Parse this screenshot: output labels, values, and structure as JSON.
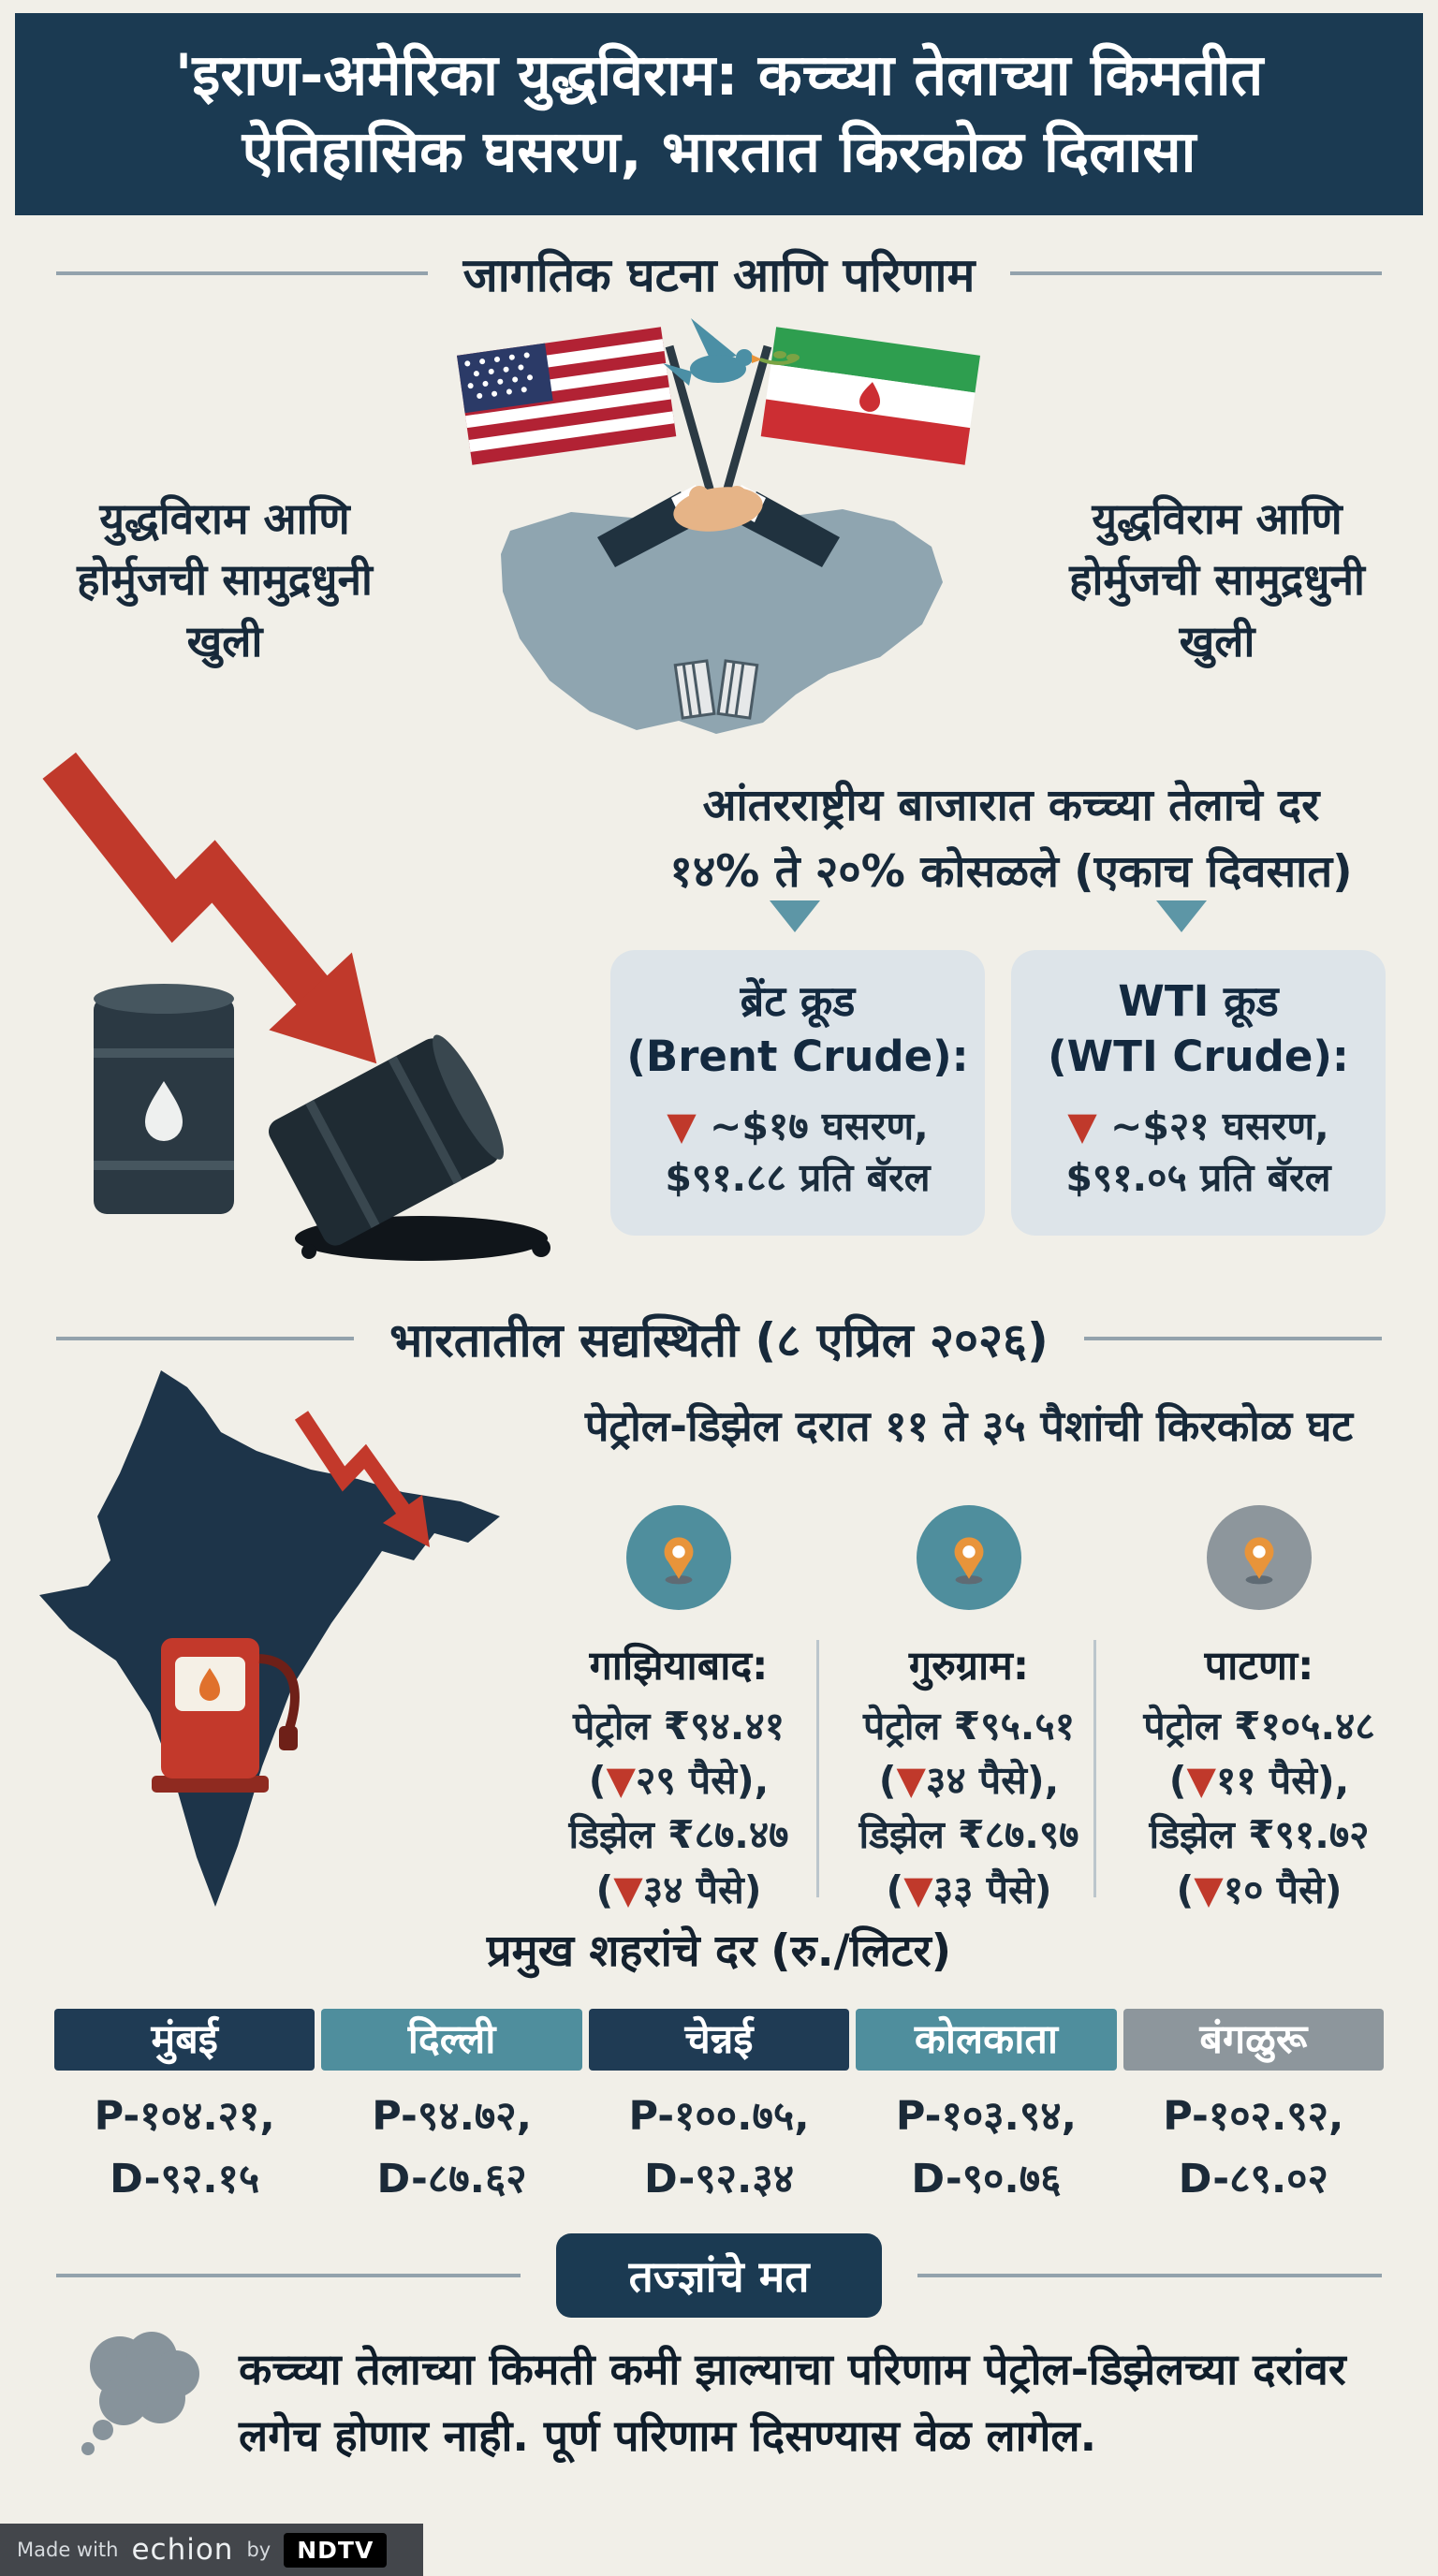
{
  "colors": {
    "navy": "#1b3a52",
    "teal": "#4f8e9d",
    "gray": "#8d969c",
    "red": "#c0392b",
    "cream": "#f1efe8",
    "card_bg": "#dde4e9",
    "pin_orange": "#e8943a"
  },
  "header": {
    "line1": "'इराण-अमेरिका युद्धविराम: कच्च्या तेलाच्या किमतीत",
    "line2": "ऐतिहासिक घसरण, भारतात किरकोळ दिलासा"
  },
  "global": {
    "title": "जागतिक घटना आणि परिणाम",
    "left_caption": "युद्धविराम आणि होर्मुजची सामुद्रधुनी खुली",
    "right_caption": "युद्धविराम आणि होर्मुजची सामुद्रधुनी खुली",
    "market_line1": "आंतरराष्ट्रीय बाजारात कच्च्या तेलाचे दर",
    "market_line2": "१४% ते २०% कोसळले (एकाच दिवसात)",
    "cards": [
      {
        "title": "ब्रेंट क्रूड",
        "subtitle": "(Brent Crude):",
        "change": "▼ ~$१७ घसरण,",
        "price": "$९१.८८ प्रति बॅरल"
      },
      {
        "title": "WTI क्रूड",
        "subtitle": "(WTI Crude):",
        "change": "▼ ~$२१ घसरण,",
        "price": "$९१.०५ प्रति बॅरल"
      }
    ]
  },
  "india": {
    "title": "भारतातील सद्यस्थिती (८ एप्रिल २०२६)",
    "subtitle": "पेट्रोल-डिझेल दरात ११ ते ३५ पैशांची किरकोळ घट",
    "cities": [
      {
        "name": "गाझियाबाद:",
        "line1": "पेट्रोल ₹९४.४१",
        "line2": "(▼२९ पैसे),",
        "line3": "डिझेल ₹८७.४७",
        "line4": "(▼३४ पैसे)",
        "icon_bg": "#4f8e9d"
      },
      {
        "name": "गुरुग्राम:",
        "line1": "पेट्रोल ₹९५.५१",
        "line2": "(▼३४ पैसे),",
        "line3": "डिझेल ₹८७.९७",
        "line4": "(▼३३ पैसे)",
        "icon_bg": "#4f8e9d"
      },
      {
        "name": "पाटणा:",
        "line1": "पेट्रोल ₹१०५.४८",
        "line2": "(▼११ पैसे),",
        "line3": "डिझेल ₹९१.७२",
        "line4": "(▼१० पैसे)",
        "icon_bg": "#8d969c"
      }
    ]
  },
  "city_table": {
    "title": "प्रमुख शहरांचे दर",
    "unit": "(रु./लिटर)",
    "columns": [
      {
        "city": "मुंबई",
        "header_bg": "#1f3b54",
        "petrol": "P-१०४.२१,",
        "diesel": "D-९२.१५"
      },
      {
        "city": "दिल्ली",
        "header_bg": "#4f8e9d",
        "petrol": "P-९४.७२,",
        "diesel": "D-८७.६२"
      },
      {
        "city": "चेन्नई",
        "header_bg": "#1f3b54",
        "petrol": "P-१००.७५,",
        "diesel": "D-९२.३४"
      },
      {
        "city": "कोलकाता",
        "header_bg": "#4f8e9d",
        "petrol": "P-१०३.९४,",
        "diesel": "D-९०.७६"
      },
      {
        "city": "बंगळुरू",
        "header_bg": "#8d969c",
        "petrol": "P-१०२.९२,",
        "diesel": "D-८९.०२"
      }
    ]
  },
  "expert": {
    "badge": "तज्ज्ञांचे मत",
    "text": "कच्च्या तेलाच्या किमती कमी झाल्याचा परिणाम पेट्रोल-डिझेलच्या दरांवर लगेच होणार नाही. पूर्ण परिणाम दिसण्यास वेळ लागेल."
  },
  "footer": {
    "made_with": "Made with",
    "brand": "echion",
    "by": "by",
    "logo": "NDTV"
  }
}
